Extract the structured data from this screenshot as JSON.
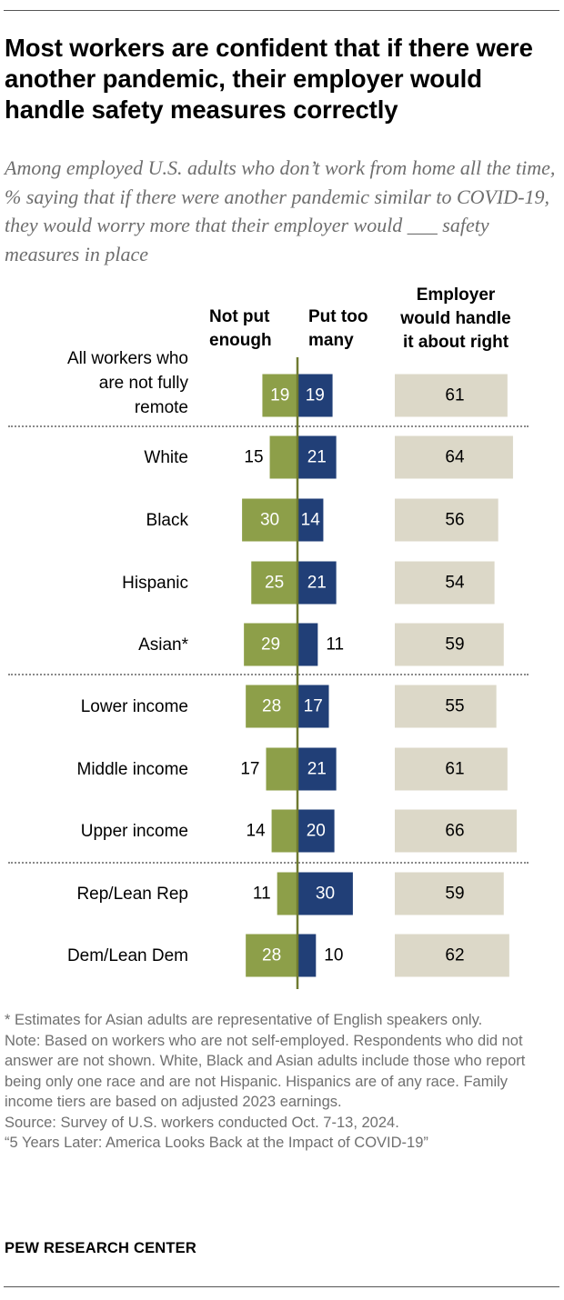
{
  "header": {
    "title": "Most workers are confident that if there were another pandemic, their employer would handle safety measures correctly",
    "subtitle": "Among employed U.S. adults who don’t work from home all the time, % saying that if there were another pandemic similar to COVID-19, they would worry more that their employer would ___ safety measures in place"
  },
  "columns": {
    "not_enough": "Not put\nenough",
    "too_many": "Put too\nmany",
    "about_right": "Employer\nwould handle\nit about right"
  },
  "chart_data": {
    "type": "bar",
    "orientation": "horizontal",
    "categories": [
      "All workers who\nare not fully\nremote",
      "White",
      "Black",
      "Hispanic",
      "Asian*",
      "Lower income",
      "Middle income",
      "Upper income",
      "Rep/Lean Rep",
      "Dem/Lean Dem"
    ],
    "groups_separated_after": [
      0,
      4,
      7
    ],
    "series": [
      {
        "name": "Not put enough",
        "color": "#8d9f49",
        "direction": "left",
        "values": [
          19,
          15,
          30,
          25,
          29,
          28,
          17,
          14,
          11,
          28
        ]
      },
      {
        "name": "Put too many",
        "color": "#213f77",
        "direction": "right",
        "values": [
          19,
          21,
          14,
          21,
          11,
          17,
          21,
          20,
          30,
          10
        ]
      },
      {
        "name": "Employer would handle it about right",
        "color": "#dcd8c8",
        "direction": "right",
        "values": [
          61,
          64,
          56,
          54,
          59,
          55,
          61,
          66,
          59,
          62
        ]
      }
    ],
    "axis_color": "#6f7a31"
  },
  "footer": {
    "notes": [
      "* Estimates for Asian adults are representative of English speakers only.",
      "Note: Based on workers who are not self-employed. Respondents who did not answer are not shown. White, Black and Asian adults include those who report being only one race and are not Hispanic. Hispanics are of any race. Family income tiers are based on adjusted 2023 earnings.",
      "Source: Survey of U.S. workers conducted Oct. 7-13, 2024.",
      "“5 Years Later: America Looks Back at the Impact of COVID-19”"
    ],
    "brand": "PEW RESEARCH CENTER"
  }
}
